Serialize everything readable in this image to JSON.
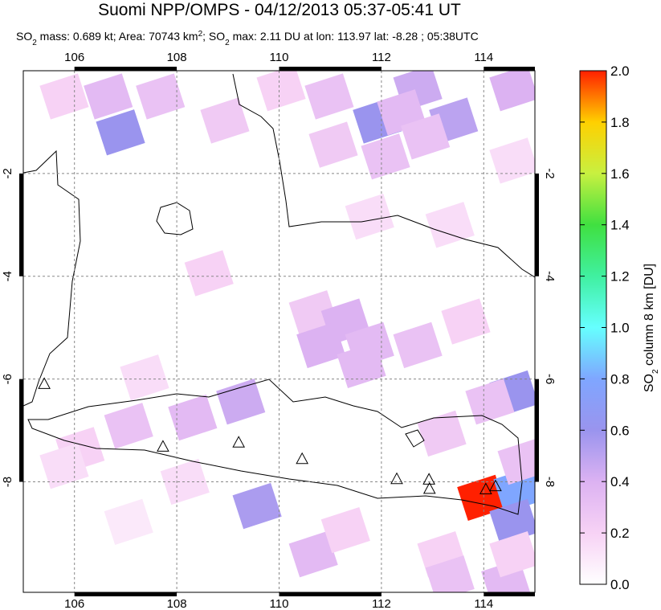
{
  "chart_data": {
    "type": "map",
    "title": "Suomi NPP/OMPS - 04/12/2013 05:37-05:41 UT",
    "subtitle": [
      {
        "text": "SO"
      },
      {
        "sub": "2"
      },
      {
        "text": " mass: 0.689 kt; Area: 70743 km"
      },
      {
        "sup": "2"
      },
      {
        "text": "; SO"
      },
      {
        "sub": "2"
      },
      {
        "text": " max: 2.11 DU at lon: 113.97 lat: -8.28 ; 05:38UTC"
      }
    ],
    "xlim": [
      105,
      115
    ],
    "ylim": [
      -10.15,
      0
    ],
    "xticks": [
      106,
      108,
      110,
      112,
      114
    ],
    "yticks": [
      -2,
      -4,
      -6,
      -8
    ],
    "grid": true,
    "cells": {
      "lon": [
        106.9,
        106.66,
        107.68,
        105.8,
        108.94,
        110.04,
        110.98,
        111.92,
        112.71,
        112.39,
        113.41,
        112.86,
        112.08,
        111.06,
        114.59,
        114.59,
        111.77,
        113.34,
        108.63,
        110.67,
        111.3,
        110.82,
        111.77,
        111.61,
        112.71,
        113.65,
        114.59,
        114.12,
        109.25,
        108.31,
        107.06,
        106.11,
        105.8,
        107.37,
        109.57,
        108.16,
        107.06,
        110.67,
        111.3,
        113.18,
        113.96,
        114.67,
        114.59,
        114.75,
        113.18,
        113.34,
        114.43,
        114.59
      ],
      "lat": [
        -1.2,
        -0.5,
        -0.5,
        -0.5,
        -0.97,
        -0.34,
        -0.5,
        -0.97,
        -0.34,
        -0.81,
        -0.97,
        -1.28,
        -1.67,
        -1.44,
        -0.34,
        -1.75,
        -2.84,
        -3.0,
        -3.94,
        -4.72,
        -4.88,
        -5.34,
        -5.34,
        -5.73,
        -5.34,
        -4.88,
        -6.28,
        -6.44,
        -6.44,
        -6.75,
        -6.91,
        -7.38,
        -7.69,
        -5.97,
        -8.47,
        -8.0,
        -8.78,
        -9.41,
        -8.94,
        -7.06,
        -8.31,
        -8.16,
        -8.78,
        -7.61,
        -9.41,
        -9.88,
        -9.95,
        -9.41
      ],
      "values": [
        0.6,
        0.35,
        0.3,
        0.2,
        0.25,
        0.2,
        0.3,
        0.6,
        0.45,
        0.35,
        0.5,
        0.3,
        0.3,
        0.25,
        0.4,
        0.15,
        0.15,
        0.15,
        0.2,
        0.25,
        0.4,
        0.4,
        0.35,
        0.35,
        0.3,
        0.2,
        0.6,
        0.3,
        0.45,
        0.35,
        0.3,
        0.2,
        0.15,
        0.15,
        0.55,
        0.15,
        0.1,
        0.35,
        0.2,
        0.25,
        2.0,
        0.8,
        0.6,
        0.3,
        0.2,
        0.3,
        0.35,
        0.2
      ]
    },
    "volcanoes": {
      "lon": [
        105.41,
        107.73,
        109.21,
        110.45,
        112.3,
        112.93,
        112.94,
        114.04,
        114.23
      ],
      "lat": [
        -6.09,
        -7.31,
        -7.23,
        -7.55,
        -7.94,
        -7.95,
        -8.13,
        -8.14,
        -8.08
      ]
    },
    "colorbar": {
      "clim": [
        0,
        2
      ],
      "colormap": [
        "#ffffff",
        "#f7d2f5",
        "#dcb2f2",
        "#9a94ee",
        "#7fa6ff",
        "#66ffff",
        "#40f0a0",
        "#40e040",
        "#c8f040",
        "#ffd000",
        "#ff2000"
      ],
      "ticks": [
        {
          "value": 0,
          "label": "0.0"
        },
        0.2,
        0.4,
        0.6,
        0.8,
        {
          "value": 1,
          "label": "1.0"
        },
        1.2,
        1.4,
        1.6,
        1.8,
        {
          "value": 2,
          "label": "2.0"
        }
      ],
      "label": [
        {
          "text": "SO"
        },
        {
          "sub": "2"
        },
        {
          "text": " column 8 km [DU]"
        }
      ]
    }
  }
}
